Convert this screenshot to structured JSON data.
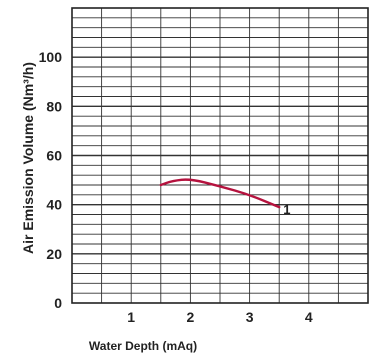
{
  "chart_data": {
    "type": "line",
    "xlabel": "Water Depth (mAq)",
    "ylabel": "Air Emission Volume (Nm³/h)",
    "xlim": [
      0,
      5
    ],
    "ylim": [
      0,
      120
    ],
    "x_ticks": [
      1,
      2,
      3,
      4
    ],
    "y_ticks": [
      0,
      20,
      40,
      60,
      80,
      100
    ],
    "grid": true,
    "series": [
      {
        "name": "1",
        "color": "#b5123e",
        "x": [
          1.5,
          1.7,
          2.0,
          2.5,
          3.0,
          3.5
        ],
        "y": [
          48,
          49.7,
          50.5,
          47.5,
          44,
          39
        ]
      }
    ]
  }
}
